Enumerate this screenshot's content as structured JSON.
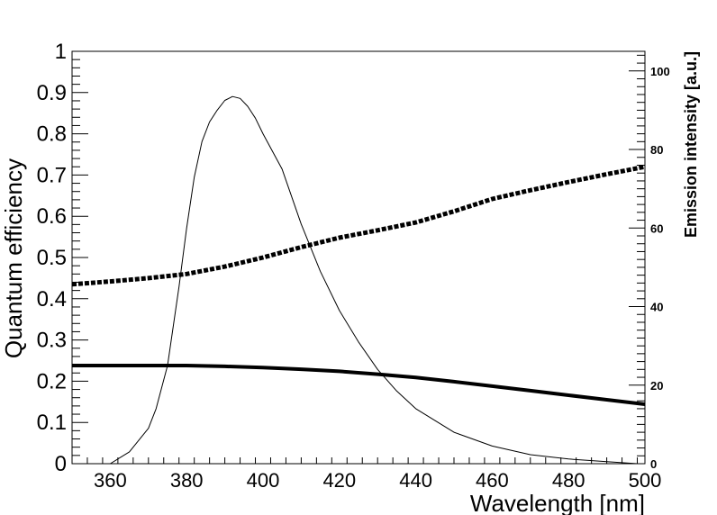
{
  "chart_data": {
    "type": "line",
    "xlabel": "Wavelength [nm]",
    "ylabel": "Quantum efficiency",
    "y2label": "Emission intensity [a.u.]",
    "xlim": [
      350,
      500
    ],
    "ylim": [
      0,
      1
    ],
    "y2lim": [
      0,
      105
    ],
    "x_ticks": [
      360,
      380,
      400,
      420,
      440,
      460,
      480,
      500
    ],
    "x_tick_labels": [
      "360",
      "380",
      "400",
      "420",
      "440",
      "460",
      "480",
      "500"
    ],
    "y_ticks": [
      0,
      0.1,
      0.2,
      0.3,
      0.4,
      0.5,
      0.6,
      0.7,
      0.8,
      0.9,
      1
    ],
    "y_tick_labels": [
      "0",
      "0.1",
      "0.2",
      "0.3",
      "0.4",
      "0.5",
      "0.6",
      "0.7",
      "0.8",
      "0.9",
      "1"
    ],
    "y2_ticks": [
      0,
      20,
      40,
      60,
      80,
      100
    ],
    "y2_tick_labels": [
      "0",
      "20",
      "40",
      "60",
      "80",
      "100"
    ],
    "grid": false,
    "series": [
      {
        "style": "dashed-thick",
        "color": "#000000",
        "axis": "left",
        "x": [
          350,
          360,
          370,
          380,
          390,
          400,
          410,
          420,
          430,
          440,
          450,
          460,
          470,
          480,
          490,
          500
        ],
        "y": [
          0.435,
          0.442,
          0.45,
          0.46,
          0.478,
          0.5,
          0.525,
          0.548,
          0.566,
          0.585,
          0.612,
          0.642,
          0.663,
          0.683,
          0.702,
          0.72
        ]
      },
      {
        "style": "solid-thick",
        "color": "#000000",
        "axis": "left",
        "x": [
          350,
          360,
          370,
          380,
          390,
          400,
          410,
          420,
          430,
          440,
          450,
          460,
          470,
          480,
          490,
          500
        ],
        "y": [
          0.238,
          0.238,
          0.238,
          0.238,
          0.236,
          0.233,
          0.229,
          0.224,
          0.217,
          0.209,
          0.199,
          0.188,
          0.177,
          0.166,
          0.155,
          0.144
        ]
      },
      {
        "style": "solid-thin",
        "color": "#000000",
        "axis": "right",
        "x": [
          360,
          365,
          370,
          372,
          375,
          378,
          380,
          382,
          384,
          386,
          388,
          390,
          392,
          394,
          396,
          398,
          400,
          405,
          410,
          415,
          420,
          425,
          430,
          435,
          440,
          450,
          460,
          470,
          480,
          490,
          498
        ],
        "y": [
          0,
          3,
          9,
          14,
          25,
          45,
          60,
          73,
          82,
          87,
          90,
          92.5,
          93.5,
          93,
          91,
          88,
          84,
          75,
          61,
          49,
          39,
          31,
          24,
          18.5,
          14,
          8,
          4.5,
          2.3,
          1.2,
          0.5,
          0
        ]
      }
    ]
  }
}
